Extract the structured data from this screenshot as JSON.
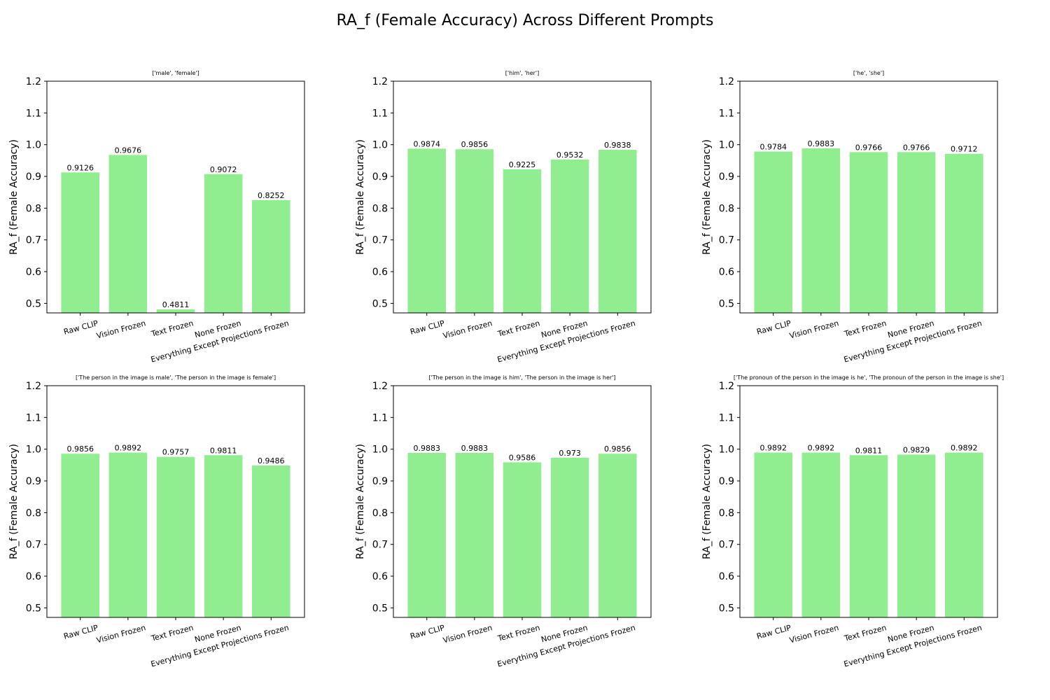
{
  "figure": {
    "title": "RA_f (Female Accuracy) Across Different Prompts",
    "bar_color": "#90ee90"
  },
  "chart_data": [
    {
      "type": "bar",
      "title": "['male', 'female']",
      "ylabel": "RA_f (Female Accuracy)",
      "xlabel": "",
      "categories": [
        "Raw CLIP",
        "Vision Frozen",
        "Text Frozen",
        "None Frozen",
        "Everything Except Projections Frozen"
      ],
      "values": [
        0.9126,
        0.9676,
        0.4811,
        0.9072,
        0.8252
      ],
      "value_labels": [
        "0.9126",
        "0.9676",
        "0.4811",
        "0.9072",
        "0.8252"
      ],
      "ylim": [
        0.47,
        1.2
      ],
      "yticks": [
        "0.5",
        "0.6",
        "0.7",
        "0.8",
        "0.9",
        "1.0",
        "1.1",
        "1.2"
      ]
    },
    {
      "type": "bar",
      "title": "['him', 'her']",
      "ylabel": "RA_f (Female Accuracy)",
      "xlabel": "",
      "categories": [
        "Raw CLIP",
        "Vision Frozen",
        "Text Frozen",
        "None Frozen",
        "Everything Except Projections Frozen"
      ],
      "values": [
        0.9874,
        0.9856,
        0.9225,
        0.9532,
        0.9838
      ],
      "value_labels": [
        "0.9874",
        "0.9856",
        "0.9225",
        "0.9532",
        "0.9838"
      ],
      "ylim": [
        0.47,
        1.2
      ],
      "yticks": [
        "0.5",
        "0.6",
        "0.7",
        "0.8",
        "0.9",
        "1.0",
        "1.1",
        "1.2"
      ]
    },
    {
      "type": "bar",
      "title": "['he', 'she']",
      "ylabel": "RA_f (Female Accuracy)",
      "xlabel": "",
      "categories": [
        "Raw CLIP",
        "Vision Frozen",
        "Text Frozen",
        "None Frozen",
        "Everything Except Projections Frozen"
      ],
      "values": [
        0.9784,
        0.9883,
        0.9766,
        0.9766,
        0.9712
      ],
      "value_labels": [
        "0.9784",
        "0.9883",
        "0.9766",
        "0.9766",
        "0.9712"
      ],
      "ylim": [
        0.47,
        1.2
      ],
      "yticks": [
        "0.5",
        "0.6",
        "0.7",
        "0.8",
        "0.9",
        "1.0",
        "1.1",
        "1.2"
      ]
    },
    {
      "type": "bar",
      "title": "['The person in the image is male', 'The person in the image is female']",
      "ylabel": "RA_f (Female Accuracy)",
      "xlabel": "",
      "categories": [
        "Raw CLIP",
        "Vision Frozen",
        "Text Frozen",
        "None Frozen",
        "Everything Except Projections Frozen"
      ],
      "values": [
        0.9856,
        0.9892,
        0.9757,
        0.9811,
        0.9486
      ],
      "value_labels": [
        "0.9856",
        "0.9892",
        "0.9757",
        "0.9811",
        "0.9486"
      ],
      "ylim": [
        0.47,
        1.2
      ],
      "yticks": [
        "0.5",
        "0.6",
        "0.7",
        "0.8",
        "0.9",
        "1.0",
        "1.1",
        "1.2"
      ]
    },
    {
      "type": "bar",
      "title": "['The person in the image is him', 'The person in the image is her']",
      "ylabel": "RA_f (Female Accuracy)",
      "xlabel": "",
      "categories": [
        "Raw CLIP",
        "Vision Frozen",
        "Text Frozen",
        "None Frozen",
        "Everything Except Projections Frozen"
      ],
      "values": [
        0.9883,
        0.9883,
        0.9586,
        0.973,
        0.9856
      ],
      "value_labels": [
        "0.9883",
        "0.9883",
        "0.9586",
        "0.973",
        "0.9856"
      ],
      "ylim": [
        0.47,
        1.2
      ],
      "yticks": [
        "0.5",
        "0.6",
        "0.7",
        "0.8",
        "0.9",
        "1.0",
        "1.1",
        "1.2"
      ]
    },
    {
      "type": "bar",
      "title": "['The pronoun of the person in the image is he', 'The pronoun of the person in the image is she']",
      "ylabel": "RA_f (Female Accuracy)",
      "xlabel": "",
      "categories": [
        "Raw CLIP",
        "Vision Frozen",
        "Text Frozen",
        "None Frozen",
        "Everything Except Projections Frozen"
      ],
      "values": [
        0.9892,
        0.9892,
        0.9811,
        0.9829,
        0.9892
      ],
      "value_labels": [
        "0.9892",
        "0.9892",
        "0.9811",
        "0.9829",
        "0.9892"
      ],
      "ylim": [
        0.47,
        1.2
      ],
      "yticks": [
        "0.5",
        "0.6",
        "0.7",
        "0.8",
        "0.9",
        "1.0",
        "1.1",
        "1.2"
      ]
    }
  ]
}
